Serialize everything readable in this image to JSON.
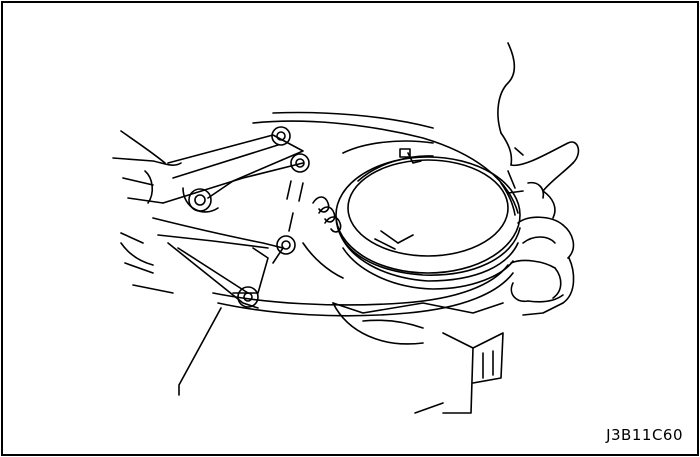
{
  "figure": {
    "code": "J3B11C60"
  },
  "icons": {
    "illustration": "piston-ring-expander-illustration"
  },
  "colors": {
    "line": "#000000",
    "background": "#ffffff"
  }
}
